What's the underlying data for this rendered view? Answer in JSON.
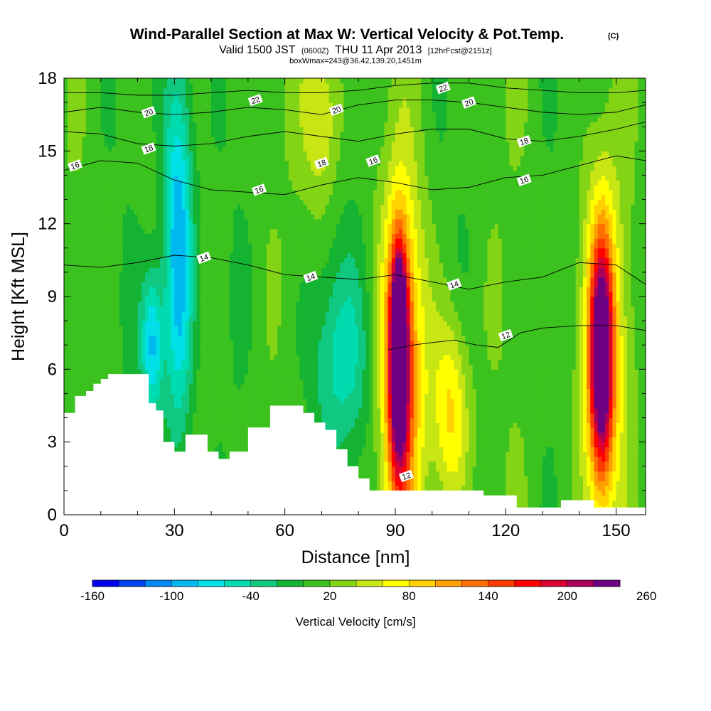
{
  "title": {
    "main": "Wind-Parallel Section at Max W: Vertical Velocity & Pot.Temp.",
    "corner": "(C)",
    "line2_a": "Valid 1500 JST",
    "line2_b": "(0600Z)",
    "line2_c": "THU 11 Apr 2013",
    "line2_d": "[12hrFcst@2151z]",
    "line3": "boxWmax=243@36.42,139.20,1451m"
  },
  "chart_data": {
    "type": "heatmap",
    "xlabel": "Distance [nm]",
    "ylabel": "Height [Kft MSL]",
    "xlim": [
      0,
      158
    ],
    "ylim": [
      0,
      18
    ],
    "xticks": [
      0,
      30,
      60,
      90,
      120,
      150
    ],
    "yticks": [
      0,
      3,
      6,
      9,
      12,
      15,
      18
    ],
    "colorbar": {
      "label": "Vertical Velocity [cm/s]",
      "tick_labels": [
        "-160",
        "-100",
        "-40",
        "20",
        "80",
        "140",
        "200",
        "260"
      ],
      "tick_values": [
        -160,
        -100,
        -40,
        20,
        80,
        140,
        200,
        260
      ],
      "min": -160,
      "step": 20,
      "colors": [
        "#0000f0",
        "#0044f5",
        "#0088f5",
        "#00b8f0",
        "#00e0e6",
        "#00dcb0",
        "#10c880",
        "#14b432",
        "#3cc21e",
        "#82d414",
        "#c8e614",
        "#ffff00",
        "#ffd200",
        "#ffa000",
        "#ff6e00",
        "#ff3c00",
        "#ff0000",
        "#dc0032",
        "#aa005a",
        "#6e0082"
      ]
    },
    "velocity_cells": [
      {
        "x": 91,
        "z": 7.5,
        "w": 260,
        "sx": 1.6,
        "sz": 2.6
      },
      {
        "x": 91,
        "z": 6.0,
        "w": 200,
        "sx": 2.8,
        "sz": 5.0
      },
      {
        "x": 92,
        "z": 6.0,
        "w": 130,
        "sx": 6.0,
        "sz": 7.5
      },
      {
        "x": 105,
        "z": 4.2,
        "w": 95,
        "sx": 5.0,
        "sz": 4.0
      },
      {
        "x": 146,
        "z": 6.5,
        "w": 220,
        "sx": 2.8,
        "sz": 4.5
      },
      {
        "x": 146,
        "z": 6.5,
        "w": 120,
        "sx": 6.0,
        "sz": 7.0
      },
      {
        "x": 70,
        "z": 16.5,
        "w": 70,
        "sx": 5.0,
        "sz": 3.5
      },
      {
        "x": 31,
        "z": 11.0,
        "w": -110,
        "sx": 4.0,
        "sz": 8.0
      },
      {
        "x": 24,
        "z": 7.0,
        "w": -90,
        "sx": 3.0,
        "sz": 3.0
      },
      {
        "x": 75,
        "z": 6.5,
        "w": -45,
        "sx": 9.0,
        "sz": 4.0
      }
    ],
    "terrain_profile_x": [
      0,
      3,
      6,
      8,
      10,
      12,
      15,
      18,
      21,
      23,
      25,
      27,
      30,
      33,
      36,
      39,
      42,
      45,
      47,
      50,
      53,
      56,
      59,
      62,
      65,
      68,
      71,
      74,
      77,
      80,
      83,
      86,
      89,
      92,
      95,
      98,
      101,
      104,
      107,
      110,
      114,
      117,
      120,
      123,
      126,
      129,
      132,
      135,
      138,
      141,
      144,
      147,
      150,
      153,
      158
    ],
    "terrain_profile_z": [
      4.2,
      4.9,
      5.1,
      5.4,
      5.6,
      5.8,
      5.8,
      5.8,
      5.8,
      4.6,
      4.3,
      3.0,
      2.6,
      3.3,
      3.3,
      2.6,
      2.3,
      2.6,
      2.6,
      3.6,
      3.6,
      4.5,
      4.5,
      4.5,
      4.2,
      3.8,
      3.5,
      2.7,
      2.0,
      1.5,
      1.0,
      1.0,
      1.0,
      1.0,
      1.0,
      1.0,
      1.0,
      1.0,
      1.0,
      1.0,
      0.8,
      0.8,
      0.8,
      0.3,
      0.3,
      0.3,
      0.3,
      0.6,
      0.6,
      0.6,
      0.3,
      0.3,
      0.3,
      0.3,
      0.3
    ],
    "theta_contours": [
      {
        "value": 12,
        "x": [
          88,
          95,
          100,
          106,
          112,
          118,
          124,
          130,
          140,
          150,
          158
        ],
        "z": [
          6.8,
          7.0,
          7.1,
          7.2,
          7.0,
          6.9,
          7.5,
          7.7,
          7.8,
          7.8,
          7.6
        ]
      },
      {
        "value": 14,
        "x": [
          0,
          10,
          20,
          30,
          40,
          50,
          60,
          70,
          80,
          90,
          100,
          110,
          120,
          130,
          140,
          150,
          158
        ],
        "z": [
          10.3,
          10.2,
          10.4,
          10.7,
          10.6,
          10.3,
          9.9,
          9.8,
          9.7,
          9.9,
          9.6,
          9.3,
          9.6,
          9.8,
          10.4,
          10.3,
          9.5
        ]
      },
      {
        "value": 16,
        "x": [
          0,
          10,
          20,
          30,
          40,
          50,
          60,
          70,
          80,
          90,
          100,
          110,
          120,
          130,
          140,
          150,
          158
        ],
        "z": [
          14.2,
          14.6,
          14.5,
          13.8,
          13.4,
          13.3,
          13.2,
          13.6,
          13.9,
          13.7,
          13.4,
          13.5,
          13.9,
          14.0,
          14.4,
          14.8,
          14.6
        ]
      },
      {
        "value": 18,
        "x": [
          0,
          10,
          20,
          30,
          40,
          50,
          60,
          70,
          80,
          90,
          100,
          110,
          120,
          130,
          140,
          150,
          158
        ],
        "z": [
          15.8,
          15.7,
          15.3,
          15.2,
          15.3,
          15.6,
          15.8,
          15.6,
          15.4,
          15.7,
          15.9,
          15.9,
          15.5,
          15.4,
          15.6,
          15.9,
          16.2
        ]
      },
      {
        "value": 20,
        "x": [
          0,
          10,
          20,
          30,
          40,
          50,
          60,
          70,
          80,
          90,
          100,
          110,
          120,
          130,
          140,
          150,
          158
        ],
        "z": [
          16.6,
          16.8,
          16.6,
          16.5,
          16.6,
          16.8,
          16.7,
          16.5,
          16.9,
          17.1,
          17.1,
          17.0,
          16.8,
          16.6,
          16.5,
          16.6,
          16.9
        ]
      },
      {
        "value": 22,
        "x": [
          0,
          10,
          20,
          30,
          40,
          50,
          60,
          70,
          80,
          90,
          100,
          110,
          120,
          130,
          140,
          150,
          158
        ],
        "z": [
          17.4,
          17.4,
          17.3,
          17.3,
          17.4,
          17.5,
          17.4,
          17.4,
          17.5,
          17.7,
          17.8,
          17.8,
          17.6,
          17.5,
          17.4,
          17.4,
          17.5
        ]
      }
    ],
    "contour_labels": [
      {
        "text": "20",
        "x": 23,
        "z": 16.6
      },
      {
        "text": "22",
        "x": 52,
        "z": 17.1
      },
      {
        "text": "20",
        "x": 74,
        "z": 16.7
      },
      {
        "text": "22",
        "x": 103,
        "z": 17.6
      },
      {
        "text": "20",
        "x": 110,
        "z": 17.0
      },
      {
        "text": "18",
        "x": 23,
        "z": 15.1
      },
      {
        "text": "16",
        "x": 3,
        "z": 14.4
      },
      {
        "text": "18",
        "x": 70,
        "z": 14.5
      },
      {
        "text": "16",
        "x": 84,
        "z": 14.6
      },
      {
        "text": "18",
        "x": 125,
        "z": 15.4
      },
      {
        "text": "16",
        "x": 53,
        "z": 13.4
      },
      {
        "text": "16",
        "x": 125,
        "z": 13.8
      },
      {
        "text": "14",
        "x": 38,
        "z": 10.6
      },
      {
        "text": "14",
        "x": 67,
        "z": 9.8
      },
      {
        "text": "14",
        "x": 106,
        "z": 9.5
      },
      {
        "text": "12",
        "x": 120,
        "z": 7.4
      },
      {
        "text": "12",
        "x": 93,
        "z": 1.6
      }
    ]
  }
}
